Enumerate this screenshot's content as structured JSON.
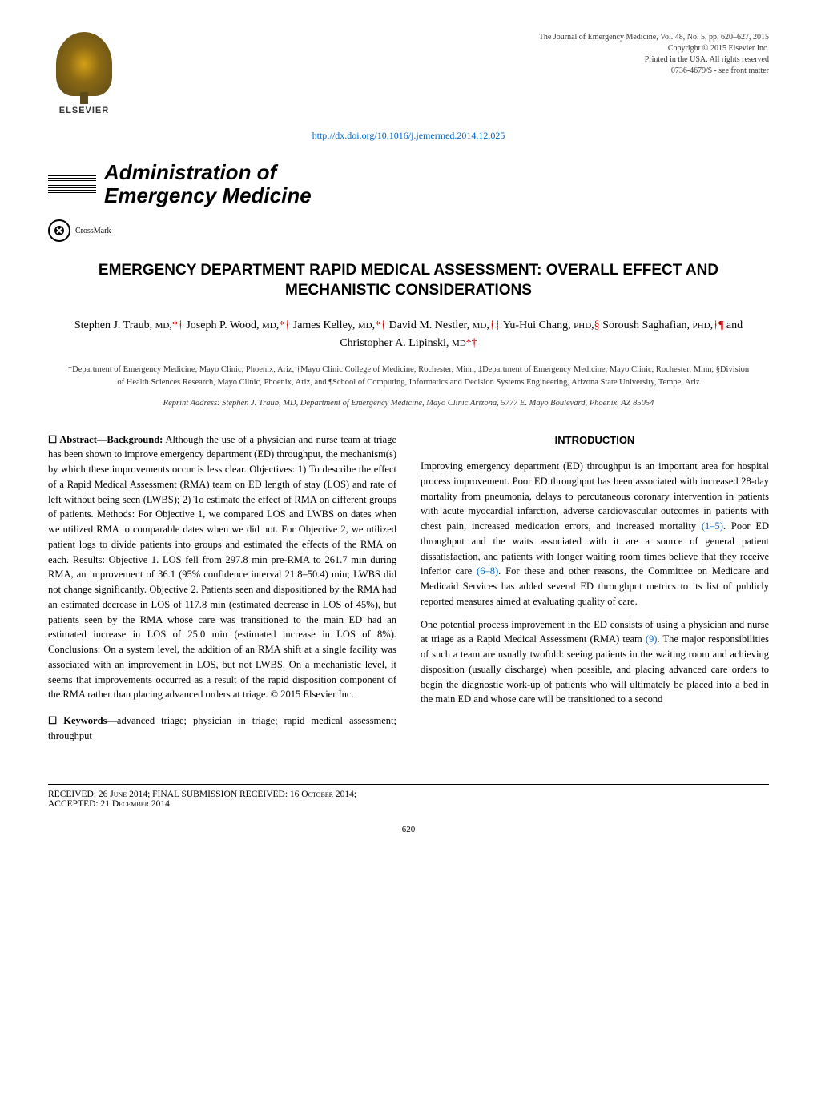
{
  "header": {
    "publisher_name": "ELSEVIER",
    "journal_line1": "The Journal of Emergency Medicine, Vol. 48, No. 5, pp. 620–627, 2015",
    "journal_line2": "Copyright © 2015 Elsevier Inc.",
    "journal_line3": "Printed in the USA. All rights reserved",
    "journal_line4": "0736-4679/$ - see front matter",
    "doi_url": "http://dx.doi.org/10.1016/j.jemermed.2014.12.025"
  },
  "section_banner": {
    "line1": "Administration of",
    "line2": "Emergency Medicine"
  },
  "crossmark_label": "CrossMark",
  "article": {
    "title": "EMERGENCY DEPARTMENT RAPID MEDICAL ASSESSMENT: OVERALL EFFECT AND MECHANISTIC CONSIDERATIONS",
    "authors_html": "Stephen J. Traub, <span class='sc'>MD</span>,<span class='aff'>*†</span> Joseph P. Wood, <span class='sc'>MD</span>,<span class='aff'>*†</span> James Kelley, <span class='sc'>MD</span>,<span class='aff'>*†</span> David M. Nestler, <span class='sc'>MD</span>,<span class='aff'>†‡</span> Yu-Hui Chang, <span class='sc'>PHD</span>,<span class='aff'>§</span> Soroush Saghafian, <span class='sc'>PHD</span>,<span class='aff'>†¶</span> and Christopher A. Lipinski, <span class='sc'>MD</span><span class='aff'>*†</span>",
    "affiliations": "*Department of Emergency Medicine, Mayo Clinic, Phoenix, Ariz, †Mayo Clinic College of Medicine, Rochester, Minn, ‡Department of Emergency Medicine, Mayo Clinic, Rochester, Minn, §Division of Health Sciences Research, Mayo Clinic, Phoenix, Ariz, and ¶School of Computing, Informatics and Decision Systems Engineering, Arizona State University, Tempe, Ariz",
    "reprint": "Reprint Address: Stephen J. Traub, MD, Department of Emergency Medicine, Mayo Clinic Arizona, 5777 E. Mayo Boulevard, Phoenix, AZ 85054"
  },
  "abstract": {
    "prefix": "☐ Abstract—Background:",
    "body": " Although the use of a physician and nurse team at triage has been shown to improve emergency department (ED) throughput, the mechanism(s) by which these improvements occur is less clear. Objectives: 1) To describe the effect of a Rapid Medical Assessment (RMA) team on ED length of stay (LOS) and rate of left without being seen (LWBS); 2) To estimate the effect of RMA on different groups of patients. Methods: For Objective 1, we compared LOS and LWBS on dates when we utilized RMA to comparable dates when we did not. For Objective 2, we utilized patient logs to divide patients into groups and estimated the effects of the RMA on each. Results: Objective 1. LOS fell from 297.8 min pre-RMA to 261.7 min during RMA, an improvement of 36.1 (95% confidence interval 21.8–50.4) min; LWBS did not change significantly. Objective 2. Patients seen and dispositioned by the RMA had an estimated decrease in LOS of 117.8 min (estimated decrease in LOS of 45%), but patients seen by the RMA whose care was transitioned to the main ED had an estimated increase in LOS of 25.0 min (estimated increase in LOS of 8%). Conclusions: On a system level, the addition of an RMA shift at a single facility was associated with an improvement in LOS, but not LWBS. On a mechanistic level, it seems that improvements occurred as a result of the rapid disposition component of the RMA rather than placing advanced orders at triage.   © 2015 Elsevier Inc."
  },
  "keywords": {
    "prefix": "☐ Keywords—",
    "body": "advanced triage; physician in triage; rapid medical assessment; throughput"
  },
  "introduction": {
    "heading": "INTRODUCTION",
    "para1_a": "Improving emergency department (ED) throughput is an important area for hospital process improvement. Poor ED throughput has been associated with increased 28-day mortality from pneumonia, delays to percutaneous coronary intervention in patients with acute myocardial infarction, adverse cardiovascular outcomes in patients with chest pain, increased medication errors, and increased mortality ",
    "ref1": "(1–5)",
    "para1_b": ". Poor ED throughput and the waits associated with it are a source of general patient dissatisfaction, and patients with longer waiting room times believe that they receive inferior care ",
    "ref2": "(6–8)",
    "para1_c": ". For these and other reasons, the Committee on Medicare and Medicaid Services has added several ED throughput metrics to its list of publicly reported measures aimed at evaluating quality of care.",
    "para2_a": "One potential process improvement in the ED consists of using a physician and nurse at triage as a Rapid Medical Assessment (RMA) team ",
    "ref3": "(9)",
    "para2_b": ". The major responsibilities of such a team are usually twofold: seeing patients in the waiting room and achieving disposition (usually discharge) when possible, and placing advanced care orders to begin the diagnostic work-up of patients who will ultimately be placed into a bed in the main ED and whose care will be transitioned to a second"
  },
  "footer": {
    "received": "RECEIVED: 26 June 2014; FINAL SUBMISSION RECEIVED: 16 October 2014;",
    "accepted": "ACCEPTED: 21 December 2014",
    "page_number": "620"
  },
  "colors": {
    "link": "#0066cc",
    "affiliation_marker": "#cc0000",
    "text": "#000000",
    "background": "#ffffff"
  },
  "fonts": {
    "body_family": "Georgia, Times New Roman, serif",
    "heading_family": "Arial, sans-serif",
    "body_size_pt": 9.5,
    "title_size_pt": 14,
    "banner_size_pt": 20
  }
}
